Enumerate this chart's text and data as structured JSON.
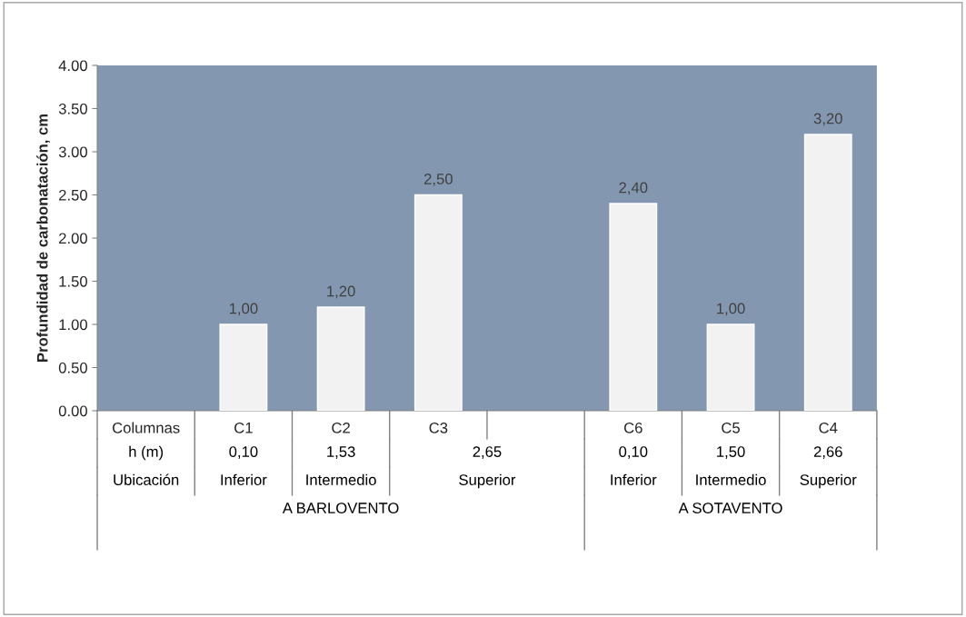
{
  "chart_data": {
    "type": "bar",
    "ylabel": "Profundidad de carbonatación, cm",
    "categories": [
      "Columnas",
      "C1",
      "C2",
      "C3",
      null,
      "C6",
      "C5",
      "C4"
    ],
    "values": [
      null,
      1.0,
      1.2,
      2.5,
      null,
      2.4,
      1.0,
      3.2
    ],
    "value_labels": [
      null,
      "1,00",
      "1,20",
      "2,50",
      null,
      "2,40",
      "1,00",
      "3,20"
    ],
    "color": "#f2f2f2",
    "ylim": [
      0,
      4
    ],
    "yticks": [
      {
        "value": 0,
        "label": "0.00"
      },
      {
        "value": 0.5,
        "label": "0.50"
      },
      {
        "value": 1,
        "label": "1.00"
      },
      {
        "value": 1.5,
        "label": "1.50"
      },
      {
        "value": 2,
        "label": "2.00"
      },
      {
        "value": 2.5,
        "label": "2.50"
      },
      {
        "value": 3,
        "label": "3.00"
      },
      {
        "value": 3.5,
        "label": "3.50"
      },
      {
        "value": 4,
        "label": "4.00"
      }
    ],
    "grid": false,
    "annotations": [
      "h (m)",
      "0,10",
      "1,53",
      "2,65",
      "0,10",
      "1,50",
      "2,66",
      "Ubicación",
      "Inferior",
      "Intermedio",
      "Superior",
      "Inferior",
      "Intermedio",
      "Superior",
      "A BARLOVENTO",
      "A SOTAVENTO"
    ]
  }
}
